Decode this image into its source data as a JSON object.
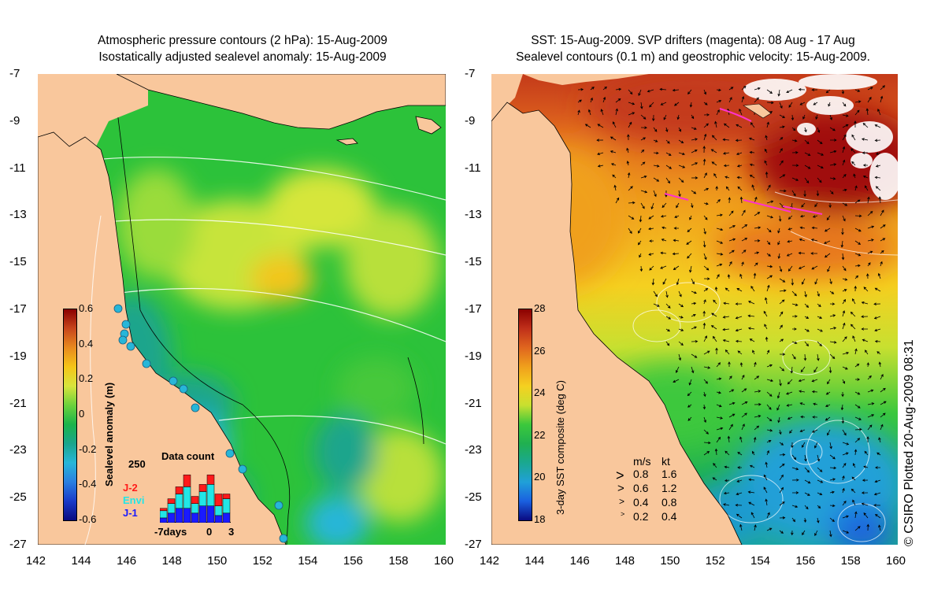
{
  "left_panel": {
    "title_line1": "Atmospheric pressure contours (2 hPa): 15-Aug-2009",
    "title_line2": "Isostatically adjusted sealevel anomaly: 15-Aug-2009",
    "colorbar": {
      "label": "Sealevel anomaly (m)",
      "ticks": [
        "0.6",
        "0.4",
        "0.2",
        "0",
        "-0.2",
        "-0.4",
        "-0.6"
      ],
      "colors": [
        "#8b0000",
        "#c8461c",
        "#e88a1e",
        "#f5c518",
        "#d8e43c",
        "#6cd23c",
        "#1bb44a",
        "#1aa58c",
        "#27b6d8",
        "#2a7fe0",
        "#1a3ac8",
        "#0a0a80"
      ]
    },
    "data_count": {
      "title": "Data count",
      "ymax_label": "250",
      "missions": [
        {
          "name": "J-2",
          "color": "#ff1a1a"
        },
        {
          "name": "Envi",
          "color": "#22e6e6"
        },
        {
          "name": "J-1",
          "color": "#1a1aff"
        }
      ],
      "x_labels": [
        "-7days",
        "0",
        "3"
      ],
      "bars": [
        {
          "j1": 20,
          "envi": 30,
          "j2": 10
        },
        {
          "j1": 40,
          "envi": 40,
          "j2": 20
        },
        {
          "j1": 60,
          "envi": 60,
          "j2": 30
        },
        {
          "j1": 60,
          "envi": 90,
          "j2": 50
        },
        {
          "j1": 40,
          "envi": 40,
          "j2": 30
        },
        {
          "j1": 70,
          "envi": 60,
          "j2": 30
        },
        {
          "j1": 70,
          "envi": 90,
          "j2": 40
        },
        {
          "j1": 30,
          "envi": 40,
          "j2": 50
        },
        {
          "j1": 40,
          "envi": 60,
          "j2": 20
        }
      ]
    }
  },
  "right_panel": {
    "title_line1": "SST: 15-Aug-2009. SVP drifters (magenta): 08 Aug - 17 Aug",
    "title_line2": "Sealevel contours (0.1 m) and geostrophic velocity: 15-Aug-2009.",
    "colorbar": {
      "label": "3-day SST composite (deg C)",
      "ticks": [
        "28",
        "26",
        "24",
        "22",
        "20",
        "18"
      ],
      "colors": [
        "#8b0000",
        "#c0301a",
        "#e0661e",
        "#f0a01c",
        "#f5d020",
        "#c8e030",
        "#3cc83c",
        "#20b050",
        "#1aa890",
        "#20a0d8",
        "#1a60e0",
        "#0a0a80"
      ]
    },
    "velocity_key": {
      "units_ms": "m/s",
      "units_kt": "kt",
      "rows": [
        {
          "ms": "0.8",
          "kt": "1.6"
        },
        {
          "ms": "0.6",
          "kt": "1.2"
        },
        {
          "ms": "0.4",
          "kt": "0.8"
        },
        {
          "ms": "0.2",
          "kt": "0.4"
        }
      ]
    },
    "credit": "© CSIRO Plotted 20-Aug-2009 08:31"
  },
  "axes": {
    "y_ticks": [
      "-7",
      "-9",
      "-11",
      "-13",
      "-15",
      "-17",
      "-19",
      "-21",
      "-23",
      "-25",
      "-27"
    ],
    "x_ticks": [
      "142",
      "144",
      "146",
      "148",
      "150",
      "152",
      "154",
      "156",
      "158",
      "160"
    ]
  },
  "colors": {
    "land": "#f9c79c",
    "ocean_green": "#2cc23a",
    "magenta": "#ff33cc"
  }
}
